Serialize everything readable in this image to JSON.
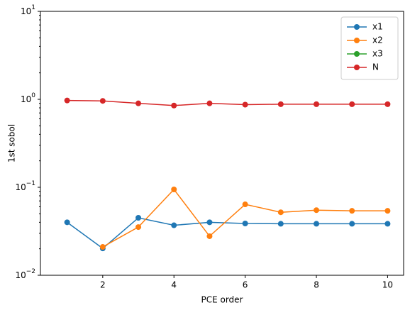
{
  "chart_data": {
    "type": "line",
    "xlabel": "PCE order",
    "ylabel": "1st sobol",
    "log_y": true,
    "x": [
      1,
      2,
      3,
      4,
      5,
      6,
      7,
      8,
      9,
      10
    ],
    "series": [
      {
        "name": "x1",
        "color": "#1f77b4",
        "values": [
          0.04,
          0.0202,
          0.045,
          0.037,
          0.04,
          0.0388,
          0.0385,
          0.0385,
          0.0385,
          0.0385
        ]
      },
      {
        "name": "x2",
        "color": "#ff7f0e",
        "values": [
          null,
          0.021,
          0.0353,
          0.0946,
          0.0278,
          0.064,
          0.052,
          0.055,
          0.054,
          0.054
        ]
      },
      {
        "name": "x3",
        "color": "#2ca02c",
        "values": [
          null,
          null,
          null,
          null,
          null,
          null,
          null,
          null,
          null,
          null
        ]
      },
      {
        "name": "N",
        "color": "#d62728",
        "values": [
          0.97,
          0.96,
          0.9,
          0.85,
          0.9,
          0.87,
          0.88,
          0.88,
          0.88,
          0.88
        ]
      }
    ],
    "xlim": [
      0.25,
      10.45
    ],
    "ylim": [
      0.01,
      10
    ],
    "xticks": [
      2,
      4,
      6,
      8,
      10
    ],
    "yticks": [
      {
        "value": 0.01,
        "label": "10^−2"
      },
      {
        "value": 0.1,
        "label": "10^−1"
      },
      {
        "value": 1,
        "label": "10^0"
      },
      {
        "value": 10,
        "label": "10^1"
      }
    ],
    "legend": "upper right"
  }
}
